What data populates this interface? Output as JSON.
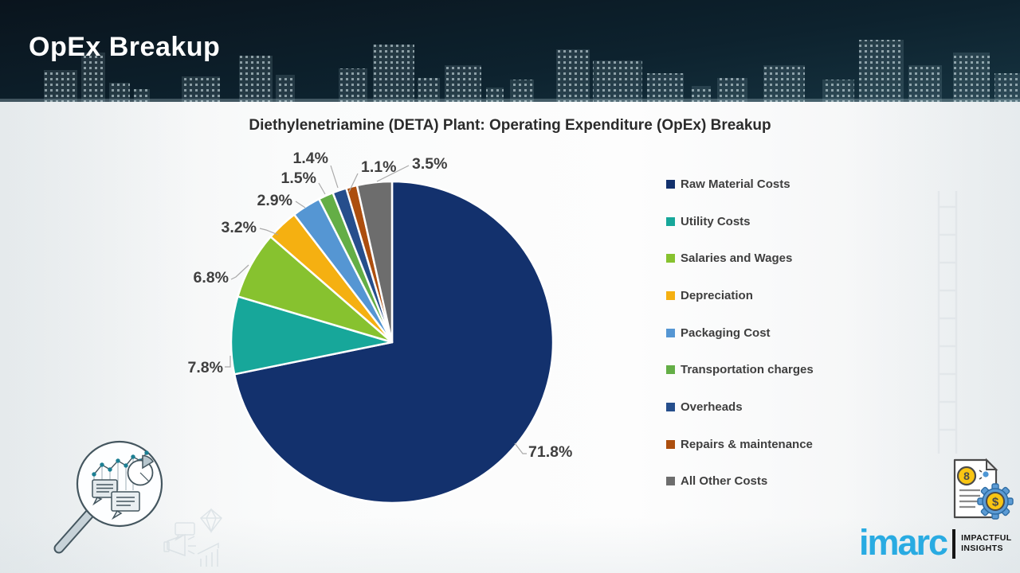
{
  "header": {
    "title": "OpEx Breakup"
  },
  "chart_data": {
    "type": "pie",
    "title": "Diethylenetriamine (DETA) Plant: Operating Expenditure (OpEx) Breakup",
    "start_angle_deg": 0,
    "direction": "clockwise",
    "legend_position": "right",
    "data_labels": "percent, one decimal, outside with leader lines",
    "slices": [
      {
        "label": "Raw Material Costs",
        "value": 71.8,
        "color": "#13316d"
      },
      {
        "label": "Utility Costs",
        "value": 7.8,
        "color": "#17a79a"
      },
      {
        "label": "Salaries and Wages",
        "value": 6.8,
        "color": "#87c22f"
      },
      {
        "label": "Depreciation",
        "value": 3.2,
        "color": "#f5b011"
      },
      {
        "label": "Packaging Cost",
        "value": 2.9,
        "color": "#5596d3"
      },
      {
        "label": "Transportation charges",
        "value": 1.5,
        "color": "#64ae46"
      },
      {
        "label": "Overheads",
        "value": 1.4,
        "color": "#264e8c"
      },
      {
        "label": "Repairs & maintenance",
        "value": 1.1,
        "color": "#ac4e0e"
      },
      {
        "label": "All Other Costs",
        "value": 3.5,
        "color": "#6d6d6d"
      }
    ]
  },
  "footer": {
    "logo_text": "imarc",
    "tagline_line1": "IMPACTFUL",
    "tagline_line2": "INSIGHTS"
  },
  "icons": {
    "bottom_left": "magnifier-analytics-icon",
    "bottom_right": "document-dollar-gear-icon"
  },
  "colors": {
    "header_gradient_top": "#0a141d",
    "header_gradient_bottom": "#163340",
    "logo_blue": "#29abe2",
    "label_text": "#3f3f3f"
  }
}
